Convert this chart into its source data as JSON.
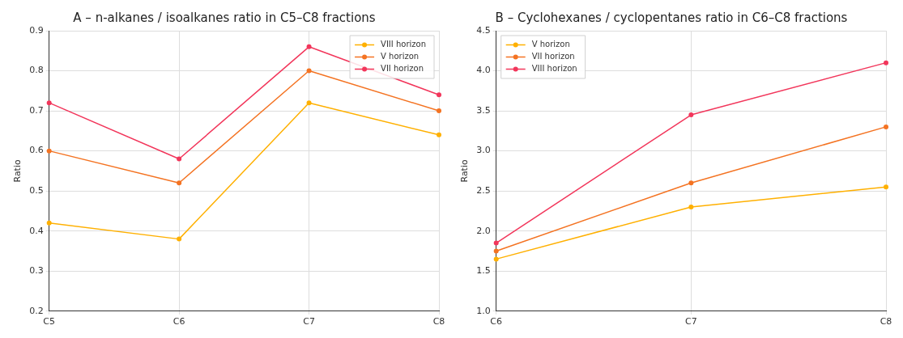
{
  "chart_data": [
    {
      "type": "line",
      "title": "A – n-alkanes / isoalkanes ratio in C5–C8 fractions",
      "ylabel": "Ratio",
      "categories": [
        "C5",
        "C6",
        "C7",
        "C8"
      ],
      "series": [
        {
          "name": "VIII horizon",
          "color": "#ffb000",
          "values": [
            0.42,
            0.38,
            0.72,
            0.64
          ]
        },
        {
          "name": "V horizon",
          "color": "#f47322",
          "values": [
            0.6,
            0.52,
            0.8,
            0.7
          ]
        },
        {
          "name": "VII horizon",
          "color": "#f2365b",
          "values": [
            0.72,
            0.58,
            0.86,
            0.74
          ]
        }
      ],
      "ylim": [
        0.2,
        0.9
      ],
      "yticks": [
        0.2,
        0.3,
        0.4,
        0.5,
        0.6,
        0.7,
        0.8,
        0.9
      ],
      "grid": true,
      "legend": "top right",
      "marker": "circle",
      "line_style": "solid"
    },
    {
      "type": "line",
      "title": "B – Cyclohexanes / cyclopentanes ratio in C6–C8 fractions",
      "ylabel": "Ratio",
      "categories": [
        "C6",
        "C7",
        "C8"
      ],
      "series": [
        {
          "name": "V horizon",
          "color": "#ffb000",
          "values": [
            1.65,
            2.3,
            2.55
          ]
        },
        {
          "name": "VII horizon",
          "color": "#f47322",
          "values": [
            1.75,
            2.6,
            3.3
          ]
        },
        {
          "name": "VIII horizon",
          "color": "#f2365b",
          "values": [
            1.85,
            3.45,
            4.1
          ]
        }
      ],
      "ylim": [
        1.0,
        4.5
      ],
      "yticks": [
        {
          "value": 1,
          "label": "1.0"
        },
        1.5,
        {
          "value": 2,
          "label": "2.0"
        },
        2.5,
        {
          "value": 3,
          "label": "3.0"
        },
        3.5,
        {
          "value": 4,
          "label": "4.0"
        },
        4.5
      ],
      "grid": true,
      "legend": "top left",
      "marker": "circle",
      "line_style": "solid"
    }
  ]
}
